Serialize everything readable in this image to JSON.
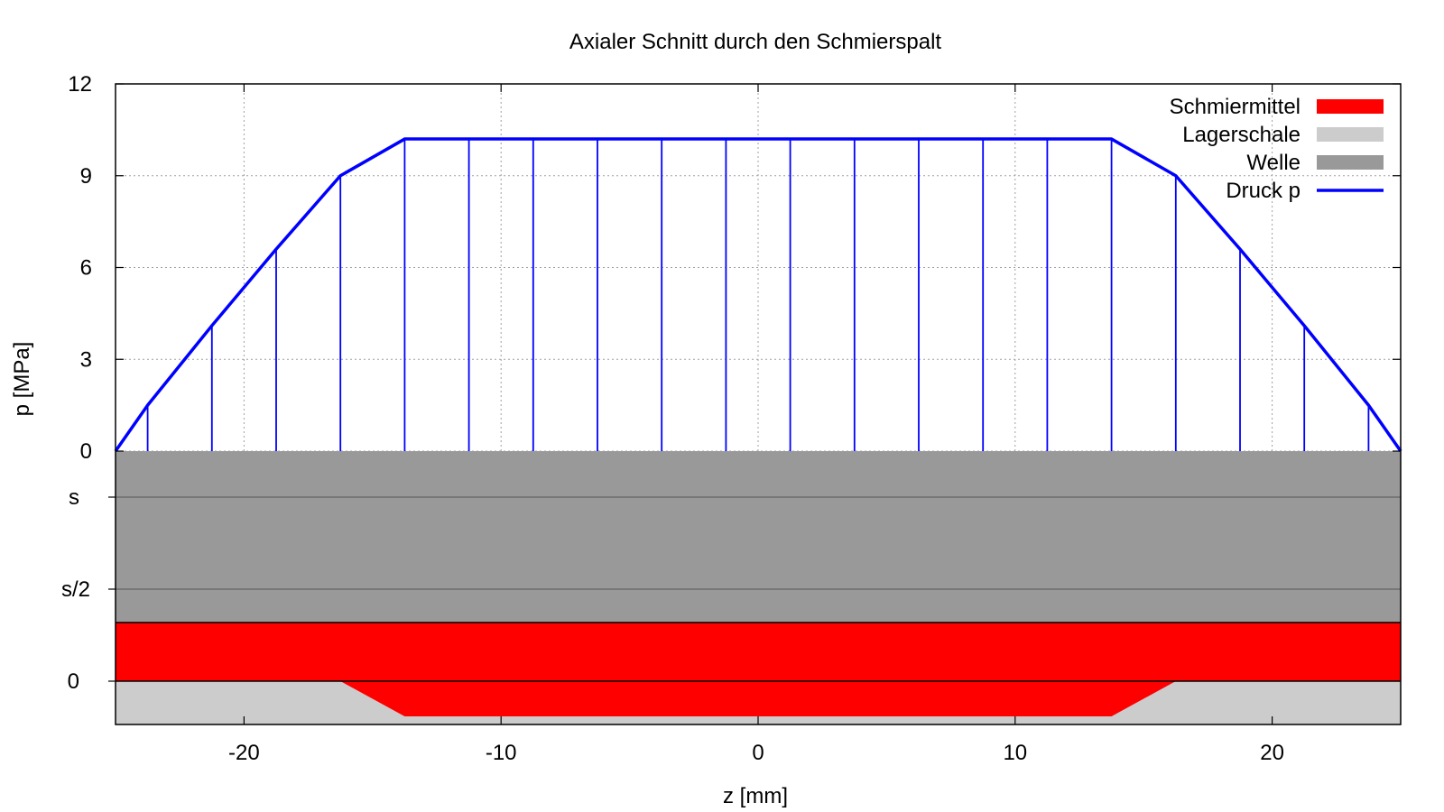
{
  "chart_data": {
    "type": "line",
    "title": "Axialer Schnitt durch den Schmierspalt",
    "xlabel": "z [mm]",
    "ylabel": "p [MPa]",
    "xlim": [
      -25,
      25
    ],
    "ylim": [
      0,
      12
    ],
    "xticks": [
      -20,
      -10,
      0,
      10,
      20
    ],
    "yticks": [
      0,
      3,
      6,
      9,
      12
    ],
    "lower_ticks": [
      "s",
      "s/2",
      "0"
    ],
    "grid": true,
    "legend_position": "top-right",
    "legend": [
      {
        "label": "Schmiermittel",
        "color": "#ff0000",
        "kind": "box"
      },
      {
        "label": "Lagerschale",
        "color": "#cccccc",
        "kind": "box"
      },
      {
        "label": "Welle",
        "color": "#999999",
        "kind": "box"
      },
      {
        "label": "Druck p",
        "color": "#0000ff",
        "kind": "line"
      }
    ],
    "series": [
      {
        "name": "Druck p",
        "color": "#0000ff",
        "x": [
          -25,
          -23.75,
          -21.25,
          -18.75,
          -16.25,
          -13.75,
          -11.25,
          -8.75,
          -6.25,
          -3.75,
          -1.25,
          1.25,
          3.75,
          6.25,
          8.75,
          11.25,
          13.75,
          16.25,
          18.75,
          21.25,
          23.75,
          25
        ],
        "y": [
          0,
          1.5,
          4.1,
          6.6,
          9.0,
          10.2,
          10.2,
          10.2,
          10.2,
          10.2,
          10.2,
          10.2,
          10.2,
          10.2,
          10.2,
          10.2,
          10.2,
          9.0,
          6.6,
          4.1,
          1.5,
          0
        ]
      }
    ],
    "cross_section": {
      "welle_color": "#999999",
      "schmiermittel_color": "#ff0000",
      "lagerschale_color": "#cccccc",
      "groove_profile_z": [
        -16.25,
        -13.75,
        13.75,
        16.25
      ]
    }
  }
}
